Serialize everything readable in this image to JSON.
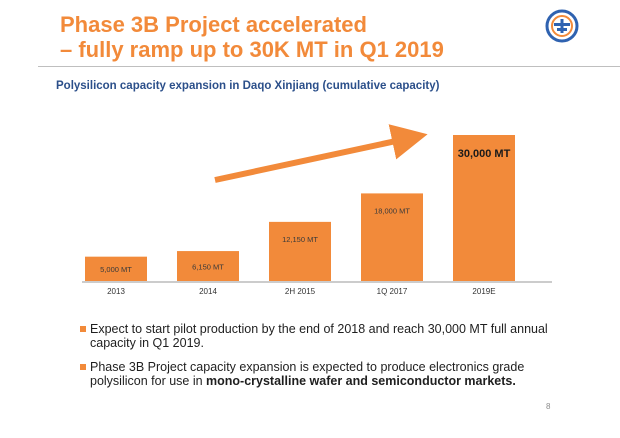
{
  "slide": {
    "title_lines": [
      "Phase 3B Project accelerated",
      "– fully ramp up to 30K MT in Q1 2019"
    ],
    "subtitle": "Polysilicon capacity expansion in Daqo Xinjiang (cumulative capacity)",
    "page_number": "8",
    "colors": {
      "accent": "#f28a3a",
      "subtitle": "#2b4f8a",
      "logo": "#2f62b0"
    }
  },
  "chart_data": {
    "type": "bar",
    "title": "Polysilicon capacity expansion in Daqo Xinjiang (cumulative capacity)",
    "categories": [
      "2013",
      "2014",
      "2H 2015",
      "1Q 2017",
      "2019E"
    ],
    "values": [
      5000,
      6150,
      12150,
      18000,
      30000
    ],
    "data_labels": [
      "5,000 MT",
      "6,150 MT",
      "12,150 MT",
      "18,000 MT",
      "30,000 MT"
    ],
    "unit": "MT",
    "xlabel": "",
    "ylabel": "",
    "ylim": [
      0,
      30000
    ],
    "grid": false,
    "annotation": "upward trend arrow",
    "bar_color": "#f28a3a"
  },
  "bullets": [
    {
      "parts": [
        {
          "text": "Expect  to start pilot production by the end of 2018 and reach 30,000 MT full annual capacity in Q1 2019."
        }
      ]
    },
    {
      "parts": [
        {
          "text": "Phase 3B Project capacity expansion is expected to produce electronics grade polysilicon for use in "
        },
        {
          "text": "mono-crystalline wafer and semiconductor markets.",
          "bold": true
        }
      ]
    }
  ]
}
